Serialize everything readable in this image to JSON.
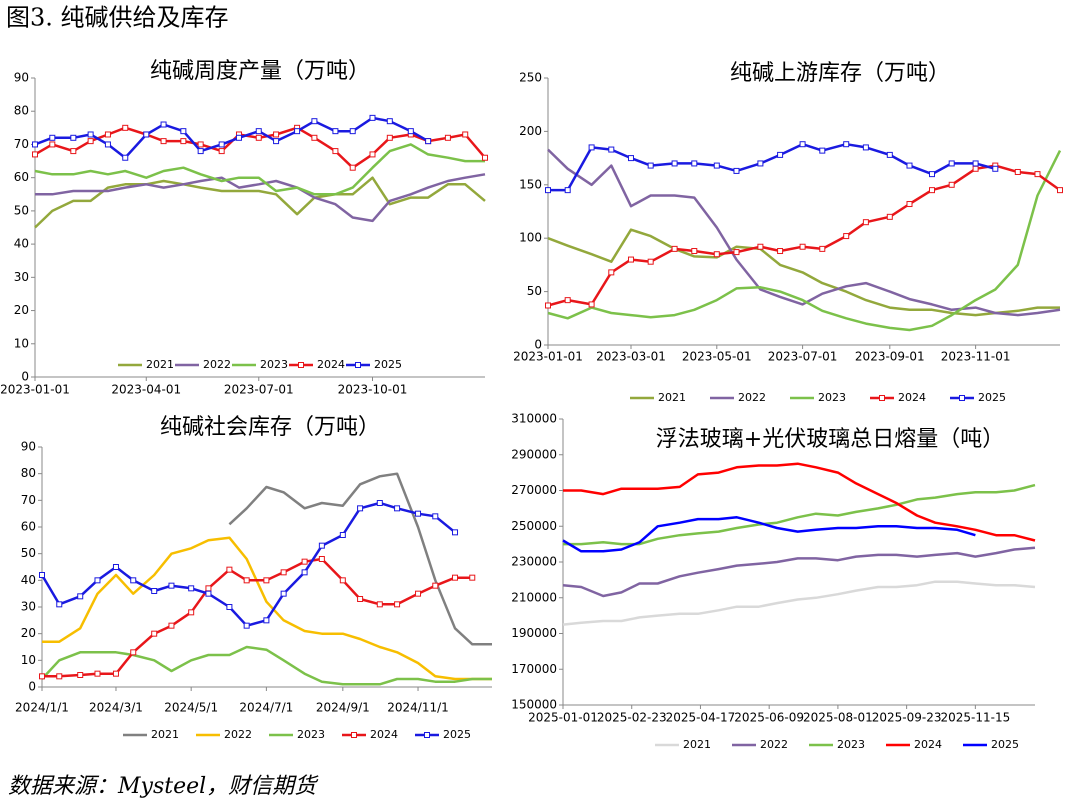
{
  "title": "图3.  纯碱供给及库存",
  "source": "数据来源：Mysteel，财信期货",
  "chart_data": [
    {
      "type": "line",
      "title": "纯碱周度产量（万吨）",
      "legend": "inside-bottom",
      "grid": false,
      "x": [
        "2023-01-01",
        "2023-01-15",
        "2023-02-01",
        "2023-02-15",
        "2023-03-01",
        "2023-03-15",
        "2023-04-01",
        "2023-04-15",
        "2023-05-01",
        "2023-05-15",
        "2023-06-01",
        "2023-06-15",
        "2023-07-01",
        "2023-07-15",
        "2023-08-01",
        "2023-08-15",
        "2023-09-01",
        "2023-09-15",
        "2023-10-01",
        "2023-10-15",
        "2023-11-01",
        "2023-11-15",
        "2023-12-01",
        "2023-12-15",
        "2023-12-31"
      ],
      "xlim": [
        "2023-01-01",
        "2023-12-31"
      ],
      "xticks": [
        "2023-01-01",
        "2023-04-01",
        "2023-07-01",
        "2023-10-01"
      ],
      "ylim": [
        0,
        90
      ],
      "yticks": [
        0,
        10,
        20,
        30,
        40,
        50,
        60,
        70,
        80,
        90
      ],
      "series": [
        {
          "name": "2021",
          "color": "#93a83c",
          "values": [
            45,
            50,
            53,
            53,
            57,
            58,
            58,
            59,
            58,
            57,
            56,
            56,
            56,
            55,
            49,
            54,
            55,
            55,
            60,
            52,
            54,
            54,
            58,
            58,
            53
          ]
        },
        {
          "name": "2022",
          "color": "#8064a2",
          "values": [
            55,
            55,
            56,
            56,
            56,
            57,
            58,
            57,
            58,
            59,
            60,
            57,
            58,
            59,
            57,
            54,
            52,
            48,
            47,
            53,
            55,
            57,
            59,
            60,
            61
          ]
        },
        {
          "name": "2023",
          "color": "#7cc14a",
          "values": [
            62,
            61,
            61,
            62,
            61,
            62,
            60,
            62,
            63,
            61,
            59,
            60,
            60,
            56,
            57,
            55,
            55,
            57,
            63,
            68,
            70,
            67,
            66,
            65,
            65
          ]
        },
        {
          "name": "2024",
          "color": "#e8161a",
          "marker": "square",
          "values": [
            67,
            70,
            68,
            71,
            73,
            75,
            73,
            71,
            71,
            70,
            68,
            73,
            72,
            73,
            75,
            72,
            68,
            63,
            67,
            72,
            73,
            71,
            72,
            73,
            66
          ]
        },
        {
          "name": "2025",
          "color": "#1a1ae0",
          "marker": "square",
          "values": [
            70,
            72,
            72,
            73,
            70,
            66,
            73,
            76,
            74,
            68,
            70,
            72,
            74,
            71,
            74,
            77,
            74,
            74,
            78,
            77,
            74,
            71,
            null,
            null,
            null
          ]
        }
      ]
    },
    {
      "type": "line",
      "title": "纯碱上游库存（万吨）",
      "legend": "bottom",
      "grid": false,
      "x": [
        "2023-01-01",
        "2023-01-15",
        "2023-02-01",
        "2023-02-15",
        "2023-03-01",
        "2023-03-15",
        "2023-04-01",
        "2023-04-15",
        "2023-05-01",
        "2023-05-15",
        "2023-06-01",
        "2023-06-15",
        "2023-07-01",
        "2023-07-15",
        "2023-08-01",
        "2023-08-15",
        "2023-09-01",
        "2023-09-15",
        "2023-10-01",
        "2023-10-15",
        "2023-11-01",
        "2023-11-15",
        "2023-12-01",
        "2023-12-15",
        "2023-12-31"
      ],
      "xlim": [
        "2023-01-01",
        "2023-12-31"
      ],
      "xticks": [
        "2023-01-01",
        "2023-03-01",
        "2023-05-01",
        "2023-07-01",
        "2023-09-01",
        "2023-11-01"
      ],
      "ylim": [
        0,
        250
      ],
      "yticks": [
        0,
        50,
        100,
        150,
        200,
        250
      ],
      "series": [
        {
          "name": "2021",
          "color": "#93a83c",
          "values": [
            100,
            93,
            85,
            78,
            108,
            102,
            90,
            83,
            82,
            92,
            90,
            75,
            68,
            58,
            50,
            42,
            35,
            33,
            33,
            30,
            28,
            30,
            32,
            35,
            35
          ]
        },
        {
          "name": "2022",
          "color": "#8064a2",
          "values": [
            183,
            165,
            150,
            168,
            130,
            140,
            140,
            138,
            110,
            80,
            52,
            45,
            38,
            48,
            55,
            58,
            50,
            43,
            38,
            33,
            35,
            30,
            28,
            30,
            33
          ]
        },
        {
          "name": "2023",
          "color": "#7cc14a",
          "values": [
            30,
            25,
            35,
            30,
            28,
            26,
            28,
            33,
            42,
            53,
            54,
            50,
            42,
            32,
            25,
            20,
            16,
            14,
            18,
            28,
            42,
            52,
            75,
            140,
            182
          ]
        },
        {
          "name": "2024",
          "color": "#e8161a",
          "marker": "square",
          "values": [
            37,
            42,
            38,
            68,
            80,
            78,
            90,
            88,
            85,
            87,
            92,
            88,
            92,
            90,
            102,
            115,
            120,
            132,
            145,
            150,
            165,
            168,
            162,
            160,
            145
          ]
        },
        {
          "name": "2025",
          "color": "#1a1ae0",
          "marker": "square",
          "values": [
            145,
            145,
            185,
            183,
            175,
            168,
            170,
            170,
            168,
            163,
            170,
            178,
            188,
            182,
            188,
            185,
            178,
            168,
            160,
            170,
            170,
            165,
            null,
            null,
            null
          ]
        }
      ]
    },
    {
      "type": "line",
      "title": "纯碱社会库存（万吨）",
      "legend": "bottom",
      "grid": false,
      "x": [
        "2024/1/1",
        "2024/1/15",
        "2024/2/1",
        "2024/2/15",
        "2024/3/1",
        "2024/3/15",
        "2024/4/1",
        "2024/4/15",
        "2024/5/1",
        "2024/5/15",
        "2024/6/1",
        "2024/6/15",
        "2024/7/1",
        "2024/7/15",
        "2024/8/1",
        "2024/8/15",
        "2024/9/1",
        "2024/9/15",
        "2024/10/1",
        "2024/10/15",
        "2024/11/1",
        "2024/11/15",
        "2024/12/1",
        "2024/12/15",
        "2024/12/31"
      ],
      "xlim": [
        "2024/1/1",
        "2024/12/31"
      ],
      "xticks": [
        "2024/1/1",
        "2024/3/1",
        "2024/5/1",
        "2024/7/1",
        "2024/9/1",
        "2024/11/1"
      ],
      "ylim": [
        0,
        90
      ],
      "yticks": [
        0,
        10,
        20,
        30,
        40,
        50,
        60,
        70,
        80,
        90
      ],
      "series": [
        {
          "name": "2021",
          "color": "#808080",
          "values": [
            null,
            null,
            null,
            null,
            null,
            null,
            null,
            null,
            null,
            null,
            61,
            67,
            75,
            73,
            67,
            69,
            68,
            76,
            79,
            80,
            60,
            40,
            22,
            16,
            16
          ]
        },
        {
          "name": "2022",
          "color": "#f7be00",
          "values": [
            17,
            17,
            22,
            35,
            42,
            35,
            42,
            50,
            52,
            55,
            56,
            48,
            32,
            25,
            21,
            20,
            20,
            18,
            15,
            13,
            9,
            4,
            3,
            3,
            3
          ]
        },
        {
          "name": "2023",
          "color": "#7cc14a",
          "values": [
            3,
            10,
            13,
            13,
            13,
            12,
            10,
            6,
            10,
            12,
            12,
            15,
            14,
            10,
            5,
            2,
            1,
            1,
            1,
            3,
            3,
            2,
            2,
            3,
            3
          ]
        },
        {
          "name": "2024",
          "color": "#e8161a",
          "marker": "square",
          "values": [
            4,
            4,
            4.5,
            5,
            5,
            13,
            20,
            23,
            28,
            37,
            44,
            40,
            40,
            43,
            47,
            48,
            40,
            33,
            31,
            31,
            35,
            38,
            41,
            41,
            null
          ]
        },
        {
          "name": "2025",
          "color": "#1a1ae0",
          "marker": "square",
          "values": [
            42,
            31,
            34,
            40,
            45,
            40,
            36,
            38,
            37,
            35,
            30,
            23,
            25,
            35,
            43,
            53,
            57,
            67,
            69,
            67,
            65,
            64,
            58,
            null,
            null
          ]
        }
      ]
    },
    {
      "type": "line",
      "title": "浮法玻璃+光伏玻璃总日熔量（吨）",
      "legend": "bottom",
      "grid": false,
      "x": [
        "2025-01-01",
        "2025-01-15",
        "2025-02-01",
        "2025-02-15",
        "2025-03-01",
        "2025-03-15",
        "2025-04-01",
        "2025-04-15",
        "2025-05-01",
        "2025-05-15",
        "2025-06-01",
        "2025-06-15",
        "2025-07-01",
        "2025-07-15",
        "2025-08-01",
        "2025-08-15",
        "2025-09-01",
        "2025-09-15",
        "2025-10-01",
        "2025-10-15",
        "2025-11-01",
        "2025-11-15",
        "2025-12-01",
        "2025-12-15",
        "2025-12-31"
      ],
      "xlim": [
        "2025-01-01",
        "2025-12-31"
      ],
      "xticks": [
        "2025-01-01",
        "2025-02-23",
        "2025-04-17",
        "2025-06-09",
        "2025-08-01",
        "2025-09-23",
        "2025-11-15"
      ],
      "ylim": [
        150000,
        310000
      ],
      "yticks": [
        150000,
        170000,
        190000,
        210000,
        230000,
        250000,
        270000,
        290000,
        310000
      ],
      "series": [
        {
          "name": "2021",
          "color": "#d9d9d9",
          "values": [
            195000,
            196000,
            197000,
            197000,
            199000,
            200000,
            201000,
            201000,
            203000,
            205000,
            205000,
            207000,
            209000,
            210000,
            212000,
            214000,
            216000,
            216000,
            217000,
            219000,
            219000,
            218000,
            217000,
            217000,
            216000
          ]
        },
        {
          "name": "2022",
          "color": "#8064a2",
          "values": [
            217000,
            216000,
            211000,
            213000,
            218000,
            218000,
            222000,
            224000,
            226000,
            228000,
            229000,
            230000,
            232000,
            232000,
            231000,
            233000,
            234000,
            234000,
            233000,
            234000,
            235000,
            233000,
            235000,
            237000,
            238000
          ]
        },
        {
          "name": "2023",
          "color": "#7cc14a",
          "values": [
            240000,
            240000,
            241000,
            240000,
            240000,
            243000,
            245000,
            246000,
            247000,
            249000,
            251000,
            252000,
            255000,
            257000,
            256000,
            258000,
            260000,
            262000,
            265000,
            266000,
            268000,
            269000,
            269000,
            270000,
            273000
          ]
        },
        {
          "name": "2024",
          "color": "#ff0000",
          "values": [
            270000,
            270000,
            268000,
            271000,
            271000,
            271000,
            272000,
            279000,
            280000,
            283000,
            284000,
            284000,
            285000,
            283000,
            280000,
            274000,
            268000,
            263000,
            256000,
            252000,
            250000,
            248000,
            245000,
            245000,
            242000
          ]
        },
        {
          "name": "2025",
          "color": "#0000ff",
          "values": [
            242000,
            236000,
            236000,
            237000,
            241000,
            250000,
            252000,
            254000,
            254000,
            255000,
            252000,
            249000,
            247000,
            248000,
            249000,
            249000,
            250000,
            250000,
            249000,
            249000,
            248000,
            245000,
            null,
            null,
            null
          ]
        }
      ]
    }
  ]
}
